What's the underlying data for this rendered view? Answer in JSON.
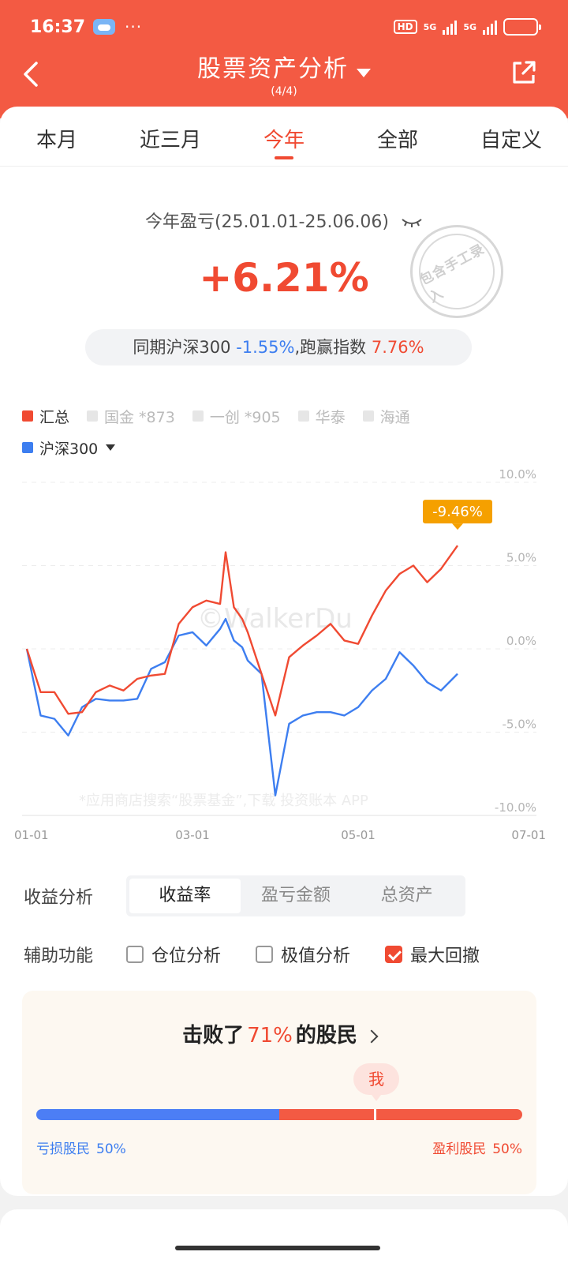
{
  "status": {
    "time": "16:37",
    "dots": "···",
    "hd": "HD",
    "net1": "5G",
    "net2": "5G"
  },
  "nav": {
    "title": "股票资产分析",
    "pager": "(4/4)"
  },
  "tabs": [
    {
      "label": "本月"
    },
    {
      "label": "近三月"
    },
    {
      "label": "今年"
    },
    {
      "label": "全部"
    },
    {
      "label": "自定义"
    }
  ],
  "summary": {
    "period": "今年盈亏(25.01.01-25.06.06)",
    "return": "+6.21%",
    "stamp": "包含手工录入",
    "compare_prefix": "同期沪深300",
    "index_return": "-1.55%",
    "compare_mid": ",跑赢指数",
    "excess": "7.76%"
  },
  "legend": [
    {
      "label": "汇总",
      "color": "#f04a32",
      "active": true
    },
    {
      "label": "国金 *873",
      "active": false
    },
    {
      "label": "一创 *905",
      "active": false
    },
    {
      "label": "华泰",
      "active": false
    },
    {
      "label": "海通",
      "active": false
    },
    {
      "label": "沪深300",
      "color": "#3d7ef0",
      "active": true
    }
  ],
  "chart_data": {
    "type": "line",
    "x_ticks": [
      "01-01",
      "03-01",
      "05-01",
      "07-01"
    ],
    "y_ticks": [
      "10.0%",
      "5.0%",
      "0.0%",
      "-5.0%",
      "-10.0%"
    ],
    "ylim": [
      -10,
      10
    ],
    "drawdown_label": "-9.46%",
    "watermark": "©WalkerDu",
    "app_watermark": "*应用商店搜索“股票基金”,下载 投资账本 APP",
    "series": [
      {
        "name": "汇总",
        "color": "#f04a32",
        "x": [
          0,
          5,
          10,
          15,
          20,
          25,
          30,
          35,
          40,
          45,
          50,
          55,
          60,
          65,
          70,
          72,
          75,
          78,
          80,
          85,
          90,
          95,
          100,
          105,
          110,
          115,
          120,
          125,
          130,
          135,
          140,
          145,
          150,
          156
        ],
        "y": [
          0,
          -2.6,
          -2.6,
          -3.9,
          -3.8,
          -2.6,
          -2.2,
          -2.5,
          -1.8,
          -1.6,
          -1.5,
          1.5,
          2.5,
          2.9,
          2.7,
          5.8,
          2.5,
          1.8,
          1.0,
          -1.5,
          -4.0,
          -0.5,
          0.2,
          0.8,
          1.5,
          0.5,
          0.3,
          2.0,
          3.5,
          4.5,
          5.0,
          4.0,
          4.8,
          6.2
        ]
      },
      {
        "name": "沪深300",
        "color": "#3d7ef0",
        "x": [
          0,
          5,
          10,
          15,
          20,
          25,
          30,
          35,
          40,
          45,
          50,
          55,
          60,
          65,
          70,
          72,
          75,
          78,
          80,
          85,
          90,
          95,
          100,
          105,
          110,
          115,
          120,
          125,
          130,
          135,
          140,
          145,
          150,
          156
        ],
        "y": [
          0,
          -4.0,
          -4.2,
          -5.2,
          -3.5,
          -3.0,
          -3.1,
          -3.1,
          -3.0,
          -1.2,
          -0.8,
          0.8,
          1.0,
          0.2,
          1.2,
          1.8,
          0.5,
          0.1,
          -0.7,
          -1.5,
          -8.8,
          -4.5,
          -4.0,
          -3.8,
          -3.8,
          -4.0,
          -3.5,
          -2.5,
          -1.8,
          -0.2,
          -1.0,
          -2.0,
          -2.5,
          -1.5
        ]
      }
    ]
  },
  "analysis": {
    "label": "收益分析",
    "options": [
      "收益率",
      "盈亏金额",
      "总资产"
    ],
    "selected": 0,
    "aux_label": "辅助功能",
    "aux": [
      {
        "label": "仓位分析",
        "checked": false
      },
      {
        "label": "极值分析",
        "checked": false
      },
      {
        "label": "最大回撤",
        "checked": true
      }
    ]
  },
  "beat": {
    "prefix": "击败了",
    "pct": "71%",
    "suffix": "的股民",
    "me": "我",
    "loss_label": "亏损股民",
    "loss_pct": "50%",
    "gain_label": "盈利股民",
    "gain_pct": "50%",
    "loss_share": 0.5
  }
}
